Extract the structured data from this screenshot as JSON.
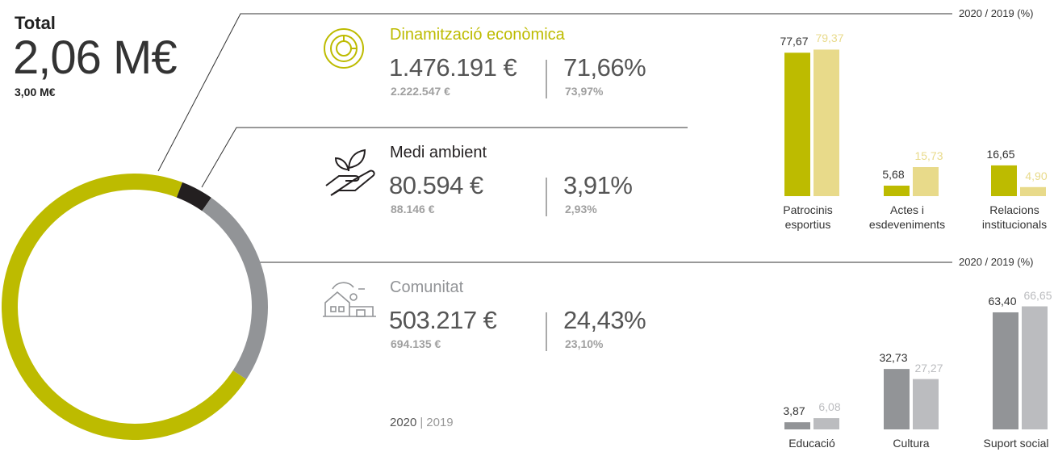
{
  "total": {
    "label": "Total",
    "value": "2,06 M€",
    "previous": "3,00 M€"
  },
  "sections": [
    {
      "amount": "1.476.191 €",
      "amount_prev": "2.222.547 €",
      "share_prev": "73,97%"
    },
    {
      "amount": "80.594 €",
      "amount_prev": "88.146 €",
      "share_prev": "2,93%"
    },
    {
      "amount": "503.217 €",
      "amount_prev": "694.135 €",
      "share_prev": "23,10%"
    }
  ],
  "legend_separator": "|",
  "chart_data": [
    {
      "type": "pie",
      "donut": true,
      "categories": [
        "Dinamització econòmica",
        "Medi ambient",
        "Comunitat"
      ],
      "values": [
        71.66,
        3.91,
        24.43
      ],
      "value_labels": [
        "71,66%",
        "3,91%",
        "24,43%"
      ],
      "colors": [
        "#bdbb00",
        "#231f20",
        "#929497"
      ]
    },
    {
      "type": "bar",
      "title": "2020 / 2019 (%)",
      "categories": [
        "Patrocinis esportius",
        "Actes i esdeveniments",
        "Relacions institucionals"
      ],
      "series": [
        {
          "name": "2020",
          "color": "#bdbb00",
          "values": [
            77.67,
            5.68,
            16.65
          ],
          "value_labels": [
            "77,67",
            "5,68",
            "16,65"
          ]
        },
        {
          "name": "2019",
          "color": "#e8da8a",
          "values": [
            79.37,
            15.73,
            4.9
          ],
          "value_labels": [
            "79,37",
            "15,73",
            "4,90"
          ]
        }
      ],
      "ylim": [
        0,
        80
      ]
    },
    {
      "type": "bar",
      "title": "2020 / 2019 (%)",
      "categories": [
        "Educació",
        "Cultura",
        "Suport social"
      ],
      "series": [
        {
          "name": "2020",
          "color": "#929497",
          "values": [
            3.87,
            32.73,
            63.4
          ],
          "value_labels": [
            "3,87",
            "32,73",
            "63,40"
          ]
        },
        {
          "name": "2019",
          "color": "#bbbcbf",
          "values": [
            6.08,
            27.27,
            66.65
          ],
          "value_labels": [
            "6,08",
            "27,27",
            "66,65"
          ]
        }
      ],
      "ylim": [
        0,
        80
      ]
    }
  ]
}
